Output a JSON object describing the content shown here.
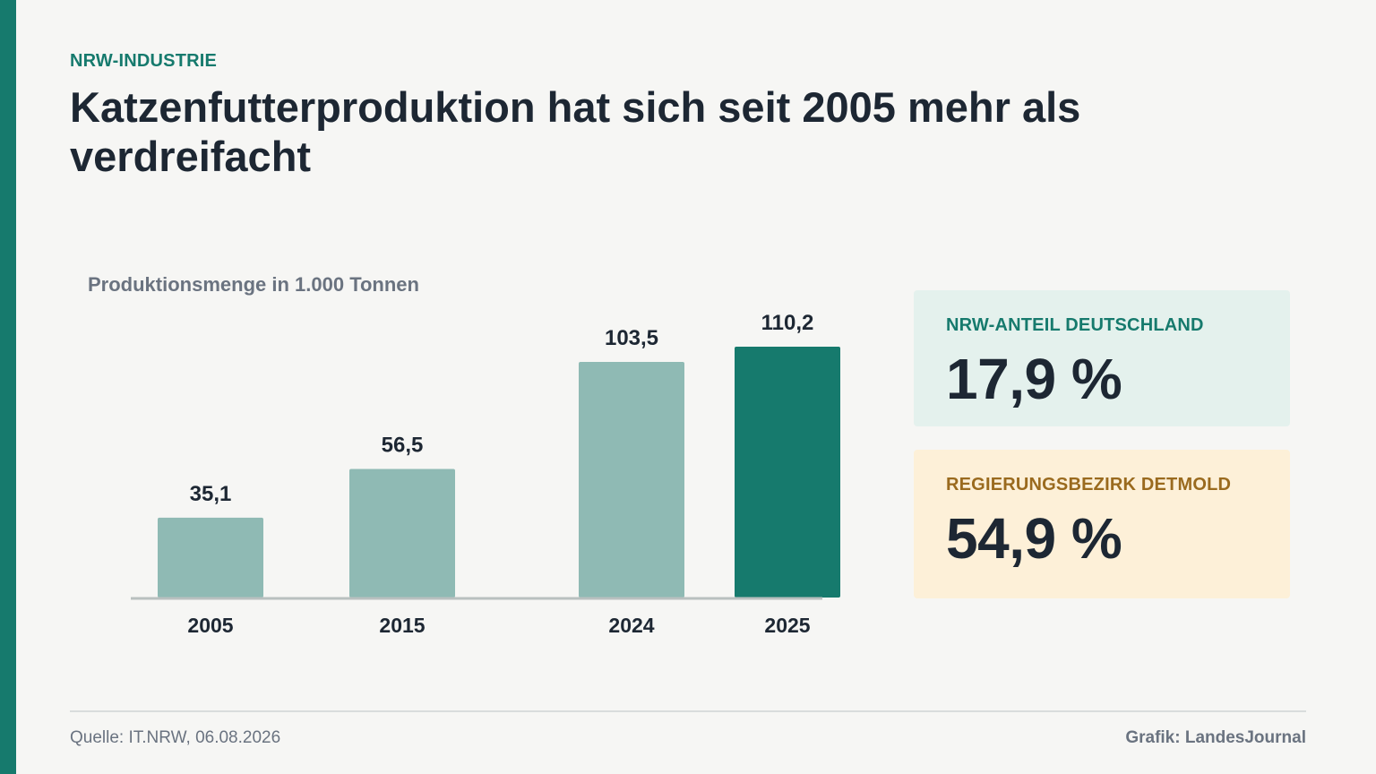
{
  "header": {
    "kicker": "NRW-INDUSTRIE",
    "headline": "Katzenfutterproduktion hat sich seit 2005 mehr als verdreifacht"
  },
  "chart_data": {
    "type": "bar",
    "title": "Produktionsmenge in 1.000 Tonnen",
    "categories": [
      "2005",
      "2015",
      "2024",
      "2025"
    ],
    "values": [
      35.1,
      56.5,
      103.5,
      110.2
    ],
    "value_labels": [
      "35,1",
      "56,5",
      "103,5",
      "110,2"
    ],
    "highlight_index": 3,
    "ylim": [
      0,
      110.2
    ],
    "grid": false,
    "colors": {
      "bar": "#8fbab4",
      "highlight": "#167a6d",
      "axis": "#b9c0bf"
    }
  },
  "cards": [
    {
      "label": "NRW-ANTEIL DEUTSCHLAND",
      "value": "17,9 %"
    },
    {
      "label": "REGIERUNGSBEZIRK DETMOLD",
      "value": "54,9 %"
    }
  ],
  "footer": {
    "source": "Quelle: IT.NRW, 06.08.2026",
    "credit": "Grafik: LandesJournal"
  }
}
